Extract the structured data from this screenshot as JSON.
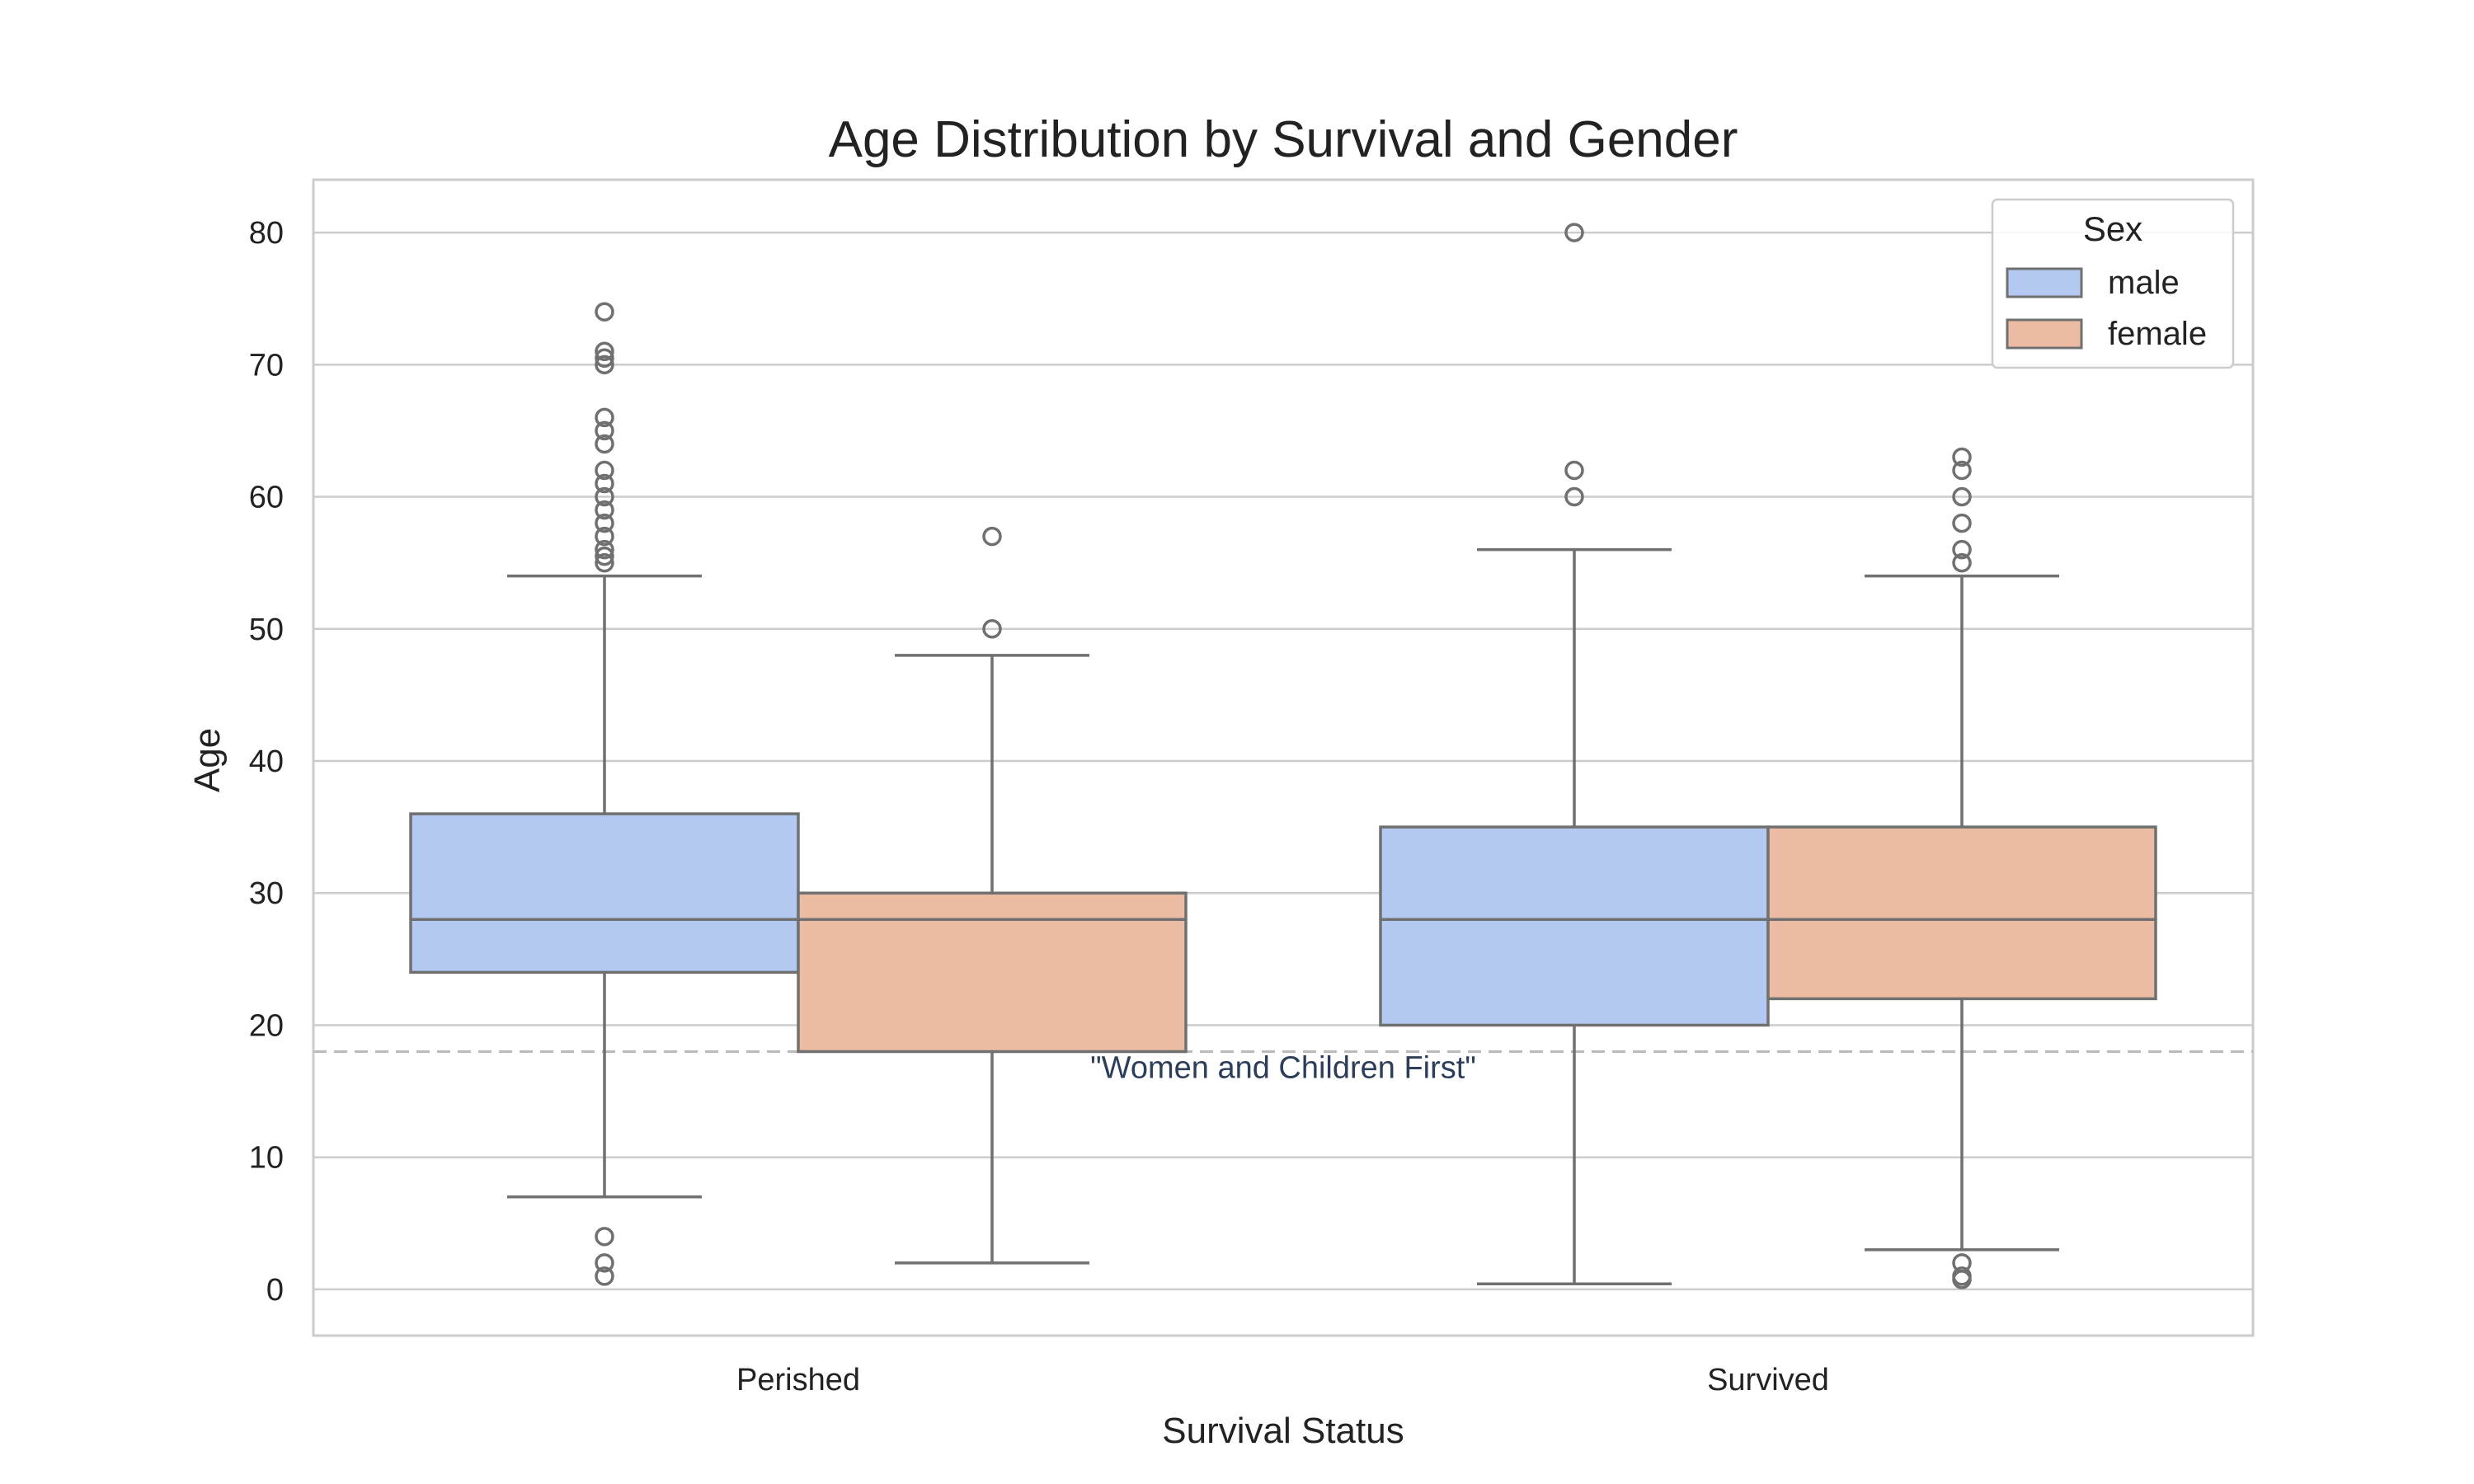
{
  "chart_data": {
    "type": "box",
    "title": "Age Distribution by Survival and Gender",
    "xlabel": "Survival Status",
    "ylabel": "Age",
    "ylim": [
      -3.5,
      84
    ],
    "yticks": [
      0,
      10,
      20,
      30,
      40,
      50,
      60,
      70,
      80
    ],
    "grid": true,
    "categories": [
      "Perished",
      "Survived"
    ],
    "legend": {
      "title": "Sex",
      "position": "top-right"
    },
    "series": [
      {
        "name": "male",
        "color": "#b3c9f2",
        "boxes": [
          {
            "category": "Perished",
            "whisker_low": 7,
            "q1": 24,
            "median": 28,
            "q3": 36,
            "whisker_high": 54,
            "outliers": [
              55,
              55.5,
              56,
              57,
              58,
              59,
              60,
              61,
              62,
              64,
              65,
              66,
              70,
              70.5,
              71,
              74,
              1,
              2,
              4
            ]
          },
          {
            "category": "Survived",
            "whisker_low": 0.42,
            "q1": 20,
            "median": 28,
            "q3": 35,
            "whisker_high": 56,
            "outliers": [
              60,
              62,
              80
            ]
          }
        ]
      },
      {
        "name": "female",
        "color": "#ecbba3",
        "boxes": [
          {
            "category": "Perished",
            "whisker_low": 2,
            "q1": 18,
            "median": 28,
            "q3": 30,
            "whisker_high": 48,
            "outliers": [
              50,
              57
            ]
          },
          {
            "category": "Survived",
            "whisker_low": 3,
            "q1": 22,
            "median": 28,
            "q3": 35,
            "whisker_high": 54,
            "outliers": [
              55,
              56,
              58,
              60,
              62,
              63,
              2,
              1,
              0.75
            ]
          }
        ]
      }
    ],
    "reference_line": {
      "y": 18,
      "style": "dashed",
      "color": "#bbbbbb",
      "label": "\"Women and Children First\""
    }
  }
}
